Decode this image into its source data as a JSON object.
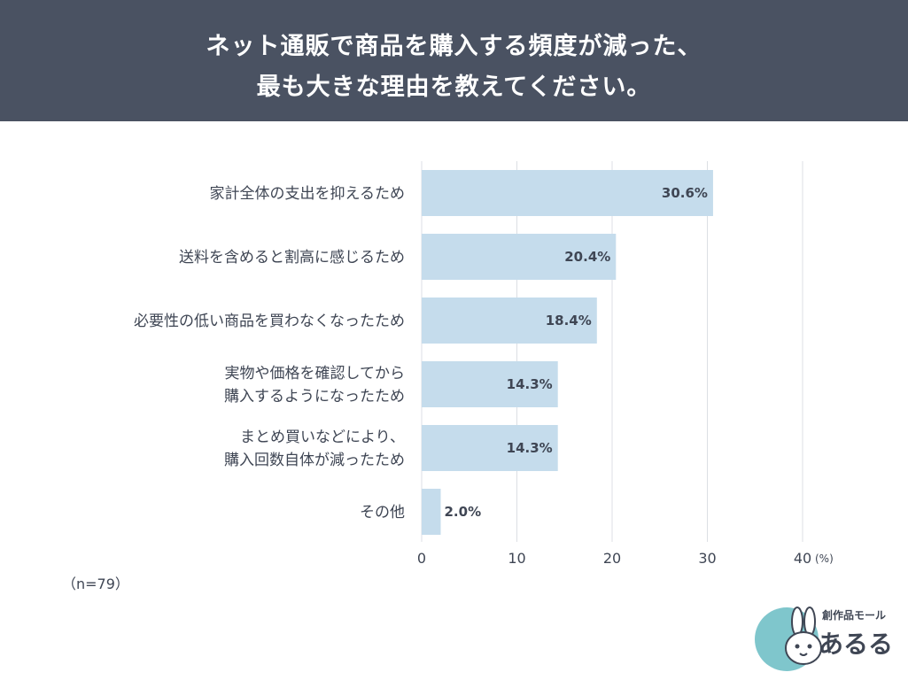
{
  "header": {
    "title_line1": "ネット通販で商品を購入する頻度が減った、",
    "title_line2": "最も大きな理由を教えてください。"
  },
  "chart_data": {
    "type": "bar",
    "orientation": "horizontal",
    "categories": [
      [
        "家計全体の支出を抑えるため"
      ],
      [
        "送料を含めると割高に感じるため"
      ],
      [
        "必要性の低い商品を買わなくなったため"
      ],
      [
        "実物や価格を確認してから",
        "購入するようになったため"
      ],
      [
        "まとめ買いなどにより、",
        "購入回数自体が減ったため"
      ],
      [
        "その他"
      ]
    ],
    "values": [
      30.6,
      20.4,
      18.4,
      14.3,
      14.3,
      2.0
    ],
    "value_labels": [
      "30.6%",
      "20.4%",
      "18.4%",
      "14.3%",
      "14.3%",
      "2.0%"
    ],
    "xlim": [
      0,
      40
    ],
    "xticks": [
      0,
      10,
      20,
      30,
      40
    ],
    "x_unit": "(%)",
    "grid": true,
    "bar_color": "#c5dcec",
    "gridline_color": "#dcdfe4"
  },
  "note": "（n=79）",
  "logo": {
    "tagline": "創作品モール",
    "name": "あるる",
    "badge_color": "#7fc6cc"
  }
}
